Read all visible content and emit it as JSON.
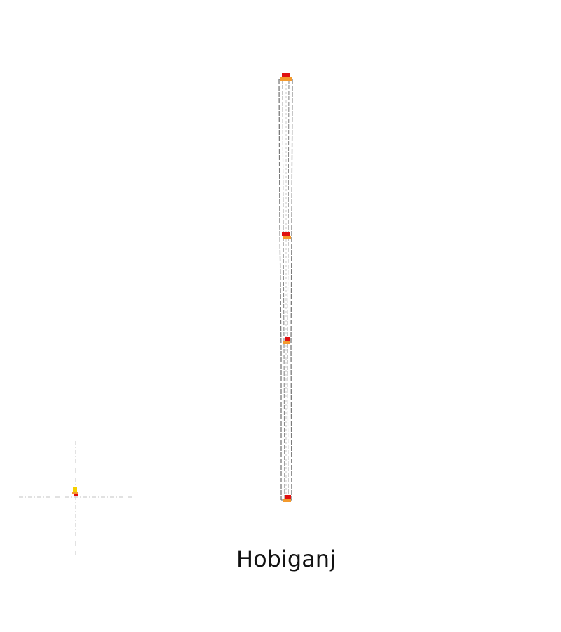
{
  "map": {
    "title": "Hobiganj",
    "colors": {
      "background": "#ffffff",
      "border_line": "#7a7a7a",
      "inner_line": "#c8c8c8",
      "crosshair": "#cfcfcf",
      "marker_red": "#e01010",
      "marker_orange": "#f39a2e",
      "marker_yellow": "#f5d000"
    }
  }
}
